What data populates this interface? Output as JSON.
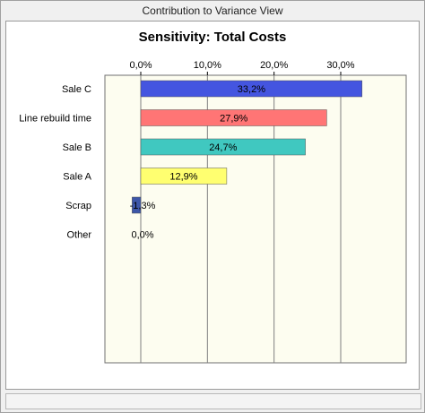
{
  "window": {
    "title": "Contribution to Variance View"
  },
  "colors": {
    "plot_bg": "#fdfdf0",
    "grid": "#808080",
    "frame_bg": "#ffffff"
  },
  "chart_data": {
    "type": "bar",
    "orientation": "horizontal",
    "title": "Sensitivity: Total Costs",
    "xlabel": "",
    "ylabel": "",
    "xlim": [
      0,
      40
    ],
    "x_ticks": [
      0,
      10,
      20,
      30
    ],
    "x_tick_labels": [
      "0,0%",
      "10,0%",
      "20,0%",
      "30,0%"
    ],
    "categories": [
      "Sale C",
      "Line rebuild time",
      "Sale B",
      "Sale A",
      "Scrap",
      "Other"
    ],
    "values": [
      33.2,
      27.9,
      24.7,
      12.9,
      -1.3,
      0.0
    ],
    "value_labels": [
      "33,2%",
      "27,9%",
      "24,7%",
      "12,9%",
      "-1,3%",
      "0,0%"
    ],
    "bar_colors": [
      "#4455e0",
      "#ff7575",
      "#40c8c0",
      "#ffff70",
      "#3d56a8",
      "#c0c0c0"
    ],
    "grid": true,
    "legend": "none"
  }
}
